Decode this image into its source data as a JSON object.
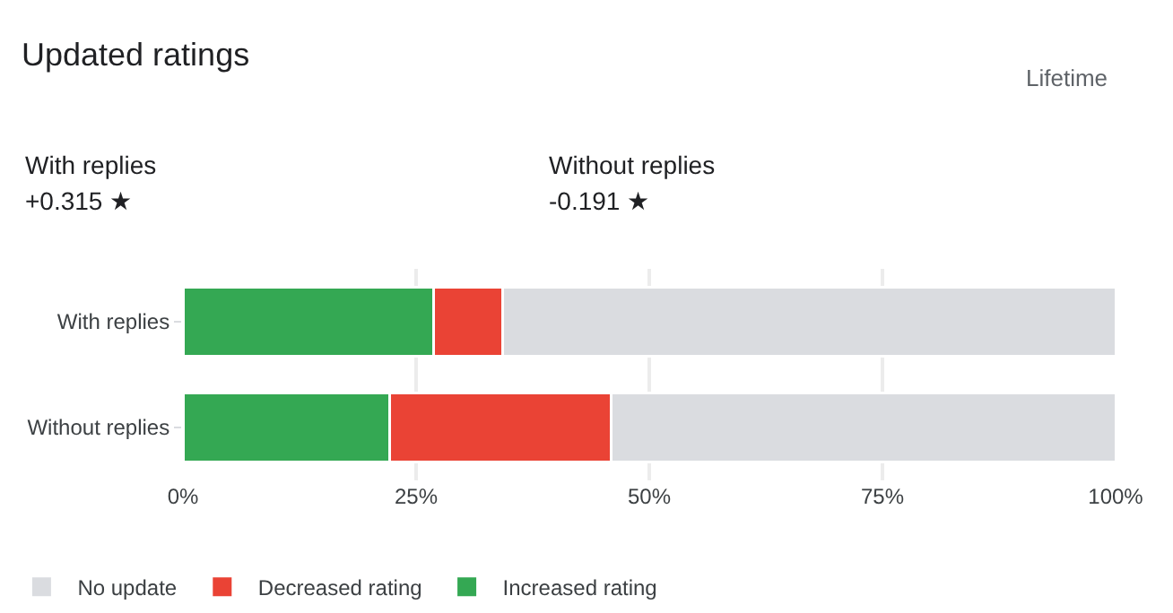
{
  "chart_data": {
    "type": "bar",
    "orientation": "horizontal",
    "stacked": true,
    "title": "Updated ratings",
    "annotations": [
      "Lifetime",
      "With replies",
      "+0.315 ★",
      "Without replies",
      "-0.191 ★"
    ],
    "categories": [
      "With replies",
      "Without replies"
    ],
    "series": [
      {
        "name": "Increased rating",
        "color": "#34a853",
        "values": [
          26.9,
          22.2
        ]
      },
      {
        "name": "Decreased rating",
        "color": "#ea4335",
        "values": [
          7.4,
          23.7
        ]
      },
      {
        "name": "No update",
        "color": "#dadce0",
        "values": [
          65.7,
          54.1
        ]
      }
    ],
    "xlim": [
      0,
      100
    ],
    "xticks": [
      {
        "value": 0,
        "label": "0%"
      },
      {
        "value": 25,
        "label": "25%"
      },
      {
        "value": 50,
        "label": "50%"
      },
      {
        "value": 75,
        "label": "75%"
      },
      {
        "value": 100,
        "label": "100%"
      }
    ],
    "grid": "x",
    "legend": "bottom left"
  }
}
